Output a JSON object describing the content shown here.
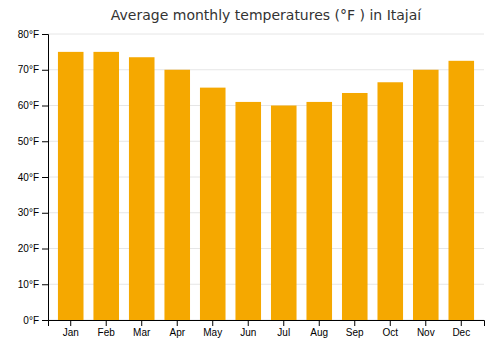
{
  "chart_data": {
    "type": "bar",
    "title": "Average monthly temperatures (°F ) in Itajaí",
    "categories": [
      "Jan",
      "Feb",
      "Mar",
      "Apr",
      "May",
      "Jun",
      "Jul",
      "Aug",
      "Sep",
      "Oct",
      "Nov",
      "Dec"
    ],
    "values": [
      75,
      75,
      73.5,
      70,
      65,
      61,
      60,
      61,
      63.5,
      66.5,
      70,
      72.5
    ],
    "color": "#F5A800",
    "ylim": [
      0,
      80
    ],
    "yticks": [
      {
        "value": 0,
        "label": "0°F"
      },
      {
        "value": 10,
        "label": "10°F"
      },
      {
        "value": 20,
        "label": "20°F"
      },
      {
        "value": 30,
        "label": "30°F"
      },
      {
        "value": 40,
        "label": "40°F"
      },
      {
        "value": 50,
        "label": "50°F"
      },
      {
        "value": 60,
        "label": "60°F"
      },
      {
        "value": 70,
        "label": "70°F"
      },
      {
        "value": 80,
        "label": "80°F"
      }
    ],
    "grid": true
  }
}
